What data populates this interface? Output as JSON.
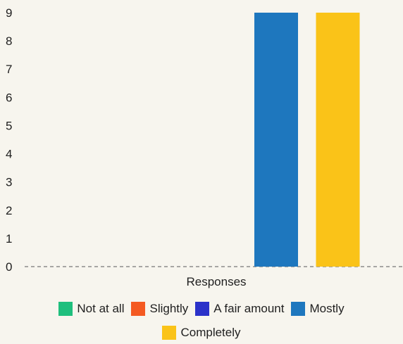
{
  "chart_data": {
    "type": "bar",
    "categories": [
      "Responses"
    ],
    "series": [
      {
        "name": "Not at all",
        "color": "#1fbf7d",
        "values": [
          0
        ]
      },
      {
        "name": "Slightly",
        "color": "#f45a22",
        "values": [
          0
        ]
      },
      {
        "name": "A fair amount",
        "color": "#2b32c9",
        "values": [
          0
        ]
      },
      {
        "name": "Mostly",
        "color": "#1e77be",
        "values": [
          9
        ]
      },
      {
        "name": "Completely",
        "color": "#fac318",
        "values": [
          9
        ]
      }
    ],
    "title": "",
    "xlabel": "Responses",
    "ylabel": "",
    "ylim": [
      0,
      9
    ],
    "yticks": [
      "0",
      "1",
      "2",
      "3",
      "4",
      "5",
      "6",
      "7",
      "8",
      "9"
    ],
    "grid": false,
    "legend_position": "bottom"
  }
}
